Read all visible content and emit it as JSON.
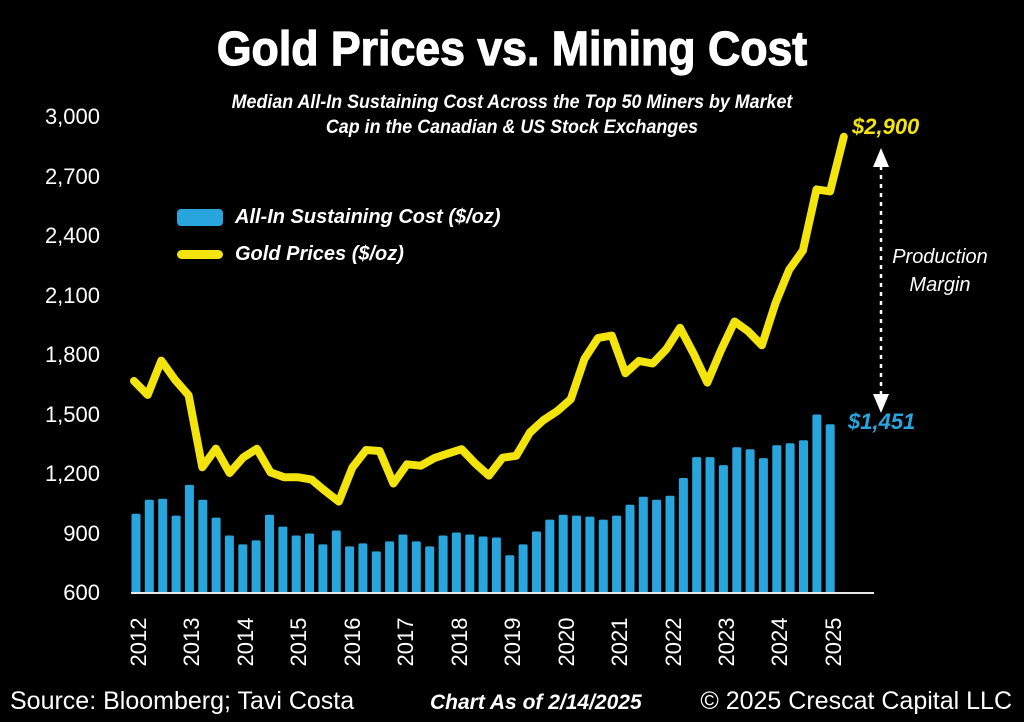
{
  "header": {
    "title": "Gold Prices vs. Mining Cost",
    "subtitle_line1": "Median All-In Sustaining Cost Across the Top 50 Miners by Market",
    "subtitle_line2": "Cap in the Canadian & US Stock Exchanges"
  },
  "annotations": {
    "gold_latest": "$2,900",
    "aisc_latest": "$1,451",
    "production_margin": "Production Margin"
  },
  "footer": {
    "source": "Source: Bloomberg; Tavi Costa",
    "as_of": "Chart As of 2/14/2025",
    "copyright": "© 2025 Crescat Capital LLC"
  },
  "colors": {
    "background": "#000000",
    "axis_line": "#E8E8E8",
    "text": "#FFFFFF",
    "arrow": "#FFFFFF"
  },
  "chart_data": {
    "type": "combo",
    "title": "Gold Prices vs. Mining Cost",
    "frequency": "quarterly",
    "legend_position": "upper-left",
    "grid": false,
    "ylim": [
      600,
      3050
    ],
    "y_ticks": [
      600,
      900,
      1200,
      1500,
      1800,
      2100,
      2400,
      2700,
      3000
    ],
    "y_tick_labels": [
      "600",
      "900",
      "1,200",
      "1,500",
      "1,800",
      "2,100",
      "2,400",
      "2,700",
      "3,000"
    ],
    "x_year_labels": [
      "2012",
      "2013",
      "2014",
      "2015",
      "2016",
      "2017",
      "2018",
      "2019",
      "2020",
      "2021",
      "2022",
      "2023",
      "2024",
      "2025"
    ],
    "series": [
      {
        "name": "All-In Sustaining Cost ($/oz)",
        "type": "bar",
        "color": "#29A5DE",
        "values": [
          1000,
          1070,
          1075,
          990,
          1145,
          1070,
          980,
          890,
          845,
          865,
          995,
          935,
          890,
          900,
          845,
          915,
          835,
          850,
          810,
          860,
          895,
          860,
          835,
          890,
          905,
          895,
          885,
          880,
          790,
          845,
          910,
          970,
          995,
          990,
          985,
          970,
          990,
          1045,
          1085,
          1070,
          1090,
          1180,
          1285,
          1285,
          1245,
          1335,
          1325,
          1280,
          1345,
          1355,
          1370,
          1500,
          1451
        ]
      },
      {
        "name": "Gold Prices ($/oz)",
        "type": "line",
        "color": "#F2E40C",
        "values": [
          1669,
          1599,
          1772,
          1676,
          1597,
          1234,
          1328,
          1205,
          1283,
          1327,
          1208,
          1184,
          1184,
          1172,
          1115,
          1061,
          1233,
          1321,
          1316,
          1152,
          1249,
          1242,
          1280,
          1303,
          1325,
          1253,
          1192,
          1282,
          1292,
          1409,
          1472,
          1517,
          1577,
          1781,
          1886,
          1898,
          1708,
          1770,
          1757,
          1829,
          1937,
          1807,
          1661,
          1824,
          1969,
          1919,
          1849,
          2063,
          2230,
          2327,
          2635,
          2625,
          2900
        ]
      }
    ],
    "callout_values": {
      "gold_latest": 2900,
      "aisc_latest": 1451
    }
  }
}
